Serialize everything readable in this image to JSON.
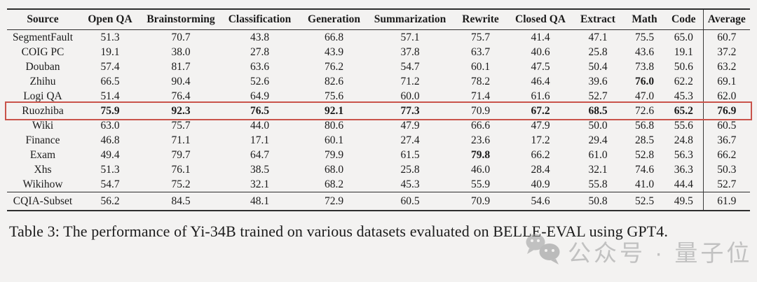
{
  "table": {
    "columns": [
      "Source",
      "Open QA",
      "Brainstorming",
      "Classification",
      "Generation",
      "Summarization",
      "Rewrite",
      "Closed QA",
      "Extract",
      "Math",
      "Code",
      "Average"
    ],
    "rows": [
      {
        "source": "SegmentFault",
        "values": [
          "51.3",
          "70.7",
          "43.8",
          "66.8",
          "57.1",
          "75.7",
          "41.4",
          "47.1",
          "75.5",
          "65.0",
          "60.7"
        ],
        "bold": [],
        "highlighted": false,
        "section_break_above": false
      },
      {
        "source": "COIG PC",
        "values": [
          "19.1",
          "38.0",
          "27.8",
          "43.9",
          "37.8",
          "63.7",
          "40.6",
          "25.8",
          "43.6",
          "19.1",
          "37.2"
        ],
        "bold": [],
        "highlighted": false,
        "section_break_above": false
      },
      {
        "source": "Douban",
        "values": [
          "57.4",
          "81.7",
          "63.6",
          "76.2",
          "54.7",
          "60.1",
          "47.5",
          "50.4",
          "73.8",
          "50.6",
          "63.2"
        ],
        "bold": [],
        "highlighted": false,
        "section_break_above": false
      },
      {
        "source": "Zhihu",
        "values": [
          "66.5",
          "90.4",
          "52.6",
          "82.6",
          "71.2",
          "78.2",
          "46.4",
          "39.6",
          "76.0",
          "62.2",
          "69.1"
        ],
        "bold": [
          8
        ],
        "highlighted": false,
        "section_break_above": false
      },
      {
        "source": "Logi QA",
        "values": [
          "51.4",
          "76.4",
          "64.9",
          "75.6",
          "60.0",
          "71.4",
          "61.6",
          "52.7",
          "47.0",
          "45.3",
          "62.0"
        ],
        "bold": [],
        "highlighted": false,
        "section_break_above": false
      },
      {
        "source": "Ruozhiba",
        "values": [
          "75.9",
          "92.3",
          "76.5",
          "92.1",
          "77.3",
          "70.9",
          "67.2",
          "68.5",
          "72.6",
          "65.2",
          "76.9"
        ],
        "bold": [
          0,
          1,
          2,
          3,
          4,
          6,
          7,
          9,
          10
        ],
        "highlighted": true,
        "section_break_above": false
      },
      {
        "source": "Wiki",
        "values": [
          "63.0",
          "75.7",
          "44.0",
          "80.6",
          "47.9",
          "66.6",
          "47.9",
          "50.0",
          "56.8",
          "55.6",
          "60.5"
        ],
        "bold": [],
        "highlighted": false,
        "section_break_above": false
      },
      {
        "source": "Finance",
        "values": [
          "46.8",
          "71.1",
          "17.1",
          "60.1",
          "27.4",
          "23.6",
          "17.2",
          "29.4",
          "28.5",
          "24.8",
          "36.7"
        ],
        "bold": [],
        "highlighted": false,
        "section_break_above": false
      },
      {
        "source": "Exam",
        "values": [
          "49.4",
          "79.7",
          "64.7",
          "79.9",
          "61.5",
          "79.8",
          "66.2",
          "61.0",
          "52.8",
          "56.3",
          "66.2"
        ],
        "bold": [
          5
        ],
        "highlighted": false,
        "section_break_above": false
      },
      {
        "source": "Xhs",
        "values": [
          "51.3",
          "76.1",
          "38.5",
          "68.0",
          "25.8",
          "46.0",
          "28.4",
          "32.1",
          "74.6",
          "36.3",
          "50.3"
        ],
        "bold": [],
        "highlighted": false,
        "section_break_above": false
      },
      {
        "source": "Wikihow",
        "values": [
          "54.7",
          "75.2",
          "32.1",
          "68.2",
          "45.3",
          "55.9",
          "40.9",
          "55.8",
          "41.0",
          "44.4",
          "52.7"
        ],
        "bold": [],
        "highlighted": false,
        "section_break_above": false
      },
      {
        "source": "CQIA-Subset",
        "values": [
          "56.2",
          "84.5",
          "48.1",
          "72.9",
          "60.5",
          "70.9",
          "54.6",
          "50.8",
          "52.5",
          "49.5",
          "61.9"
        ],
        "bold": [],
        "highlighted": false,
        "section_break_above": true
      }
    ],
    "highlight_color": "#c9544b"
  },
  "caption": "Table 3: The performance of Yi-34B trained on various datasets evaluated on BELLE-EVAL using GPT4.",
  "watermark": {
    "icon": "wechat-icon",
    "text": "公众号 · 量子位"
  },
  "colors": {
    "background": "#f3f2f1",
    "rule": "#2e2e2e",
    "highlight_border": "#c9544b",
    "watermark_gray": "#9a9a9a"
  }
}
